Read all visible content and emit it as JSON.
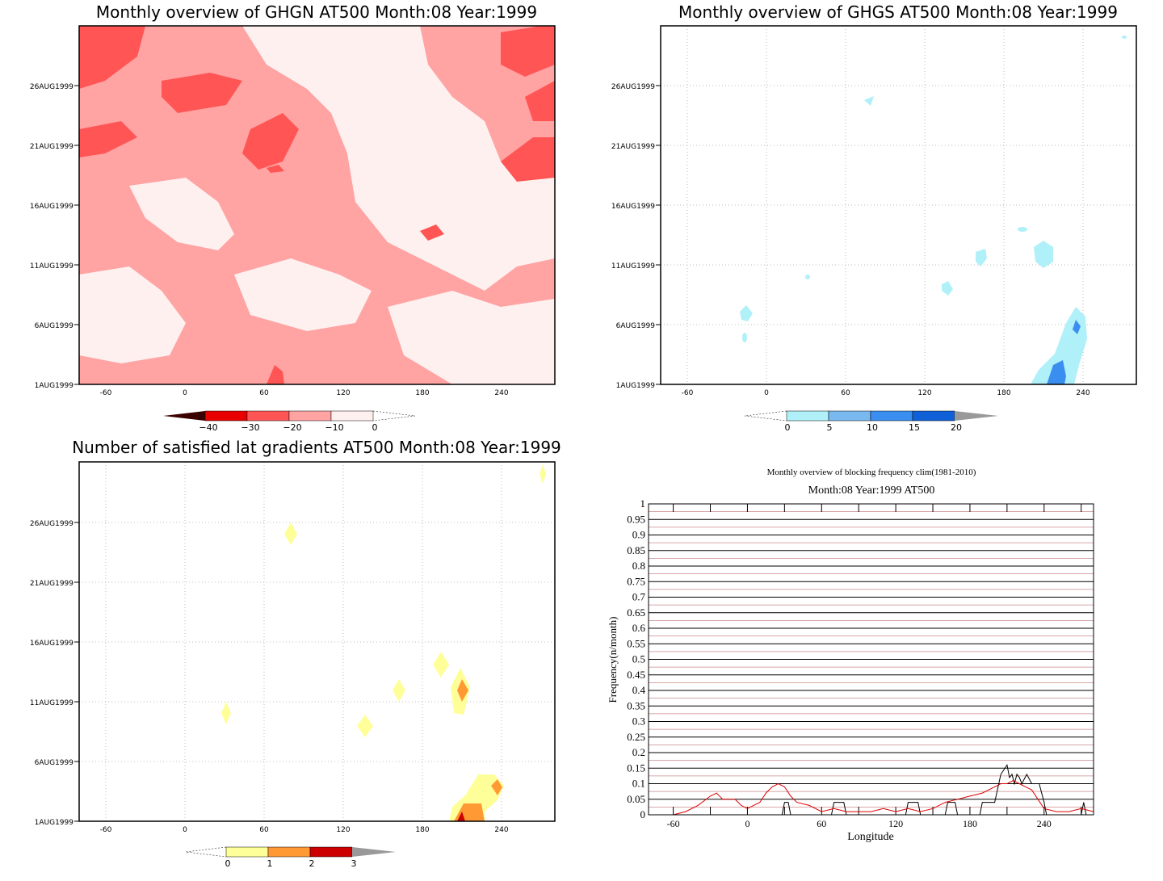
{
  "panels": {
    "ghgn": {
      "title": "Monthly overview of GHGN AT500 Month:08 Year:1999",
      "colorbar": {
        "ticks": [
          "−40",
          "−30",
          "−20",
          "−10",
          "0"
        ],
        "colors": [
          "#3a0000",
          "#e80000",
          "#ff5555",
          "#ffa3a3",
          "#fff0f0"
        ]
      }
    },
    "ghgs": {
      "title": "Monthly overview of GHGS AT500 Month:08 Year:1999",
      "colorbar": {
        "ticks": [
          "0",
          "5",
          "10",
          "15",
          "20"
        ],
        "colors": [
          "#b0f0f8",
          "#7ab8f0",
          "#3a8ef0",
          "#1060d8",
          "#999999"
        ]
      }
    },
    "gradients": {
      "title": "Number of satisfied lat gradients AT500 Month:08 Year:1999",
      "colorbar": {
        "ticks": [
          "0",
          "1",
          "2",
          "3"
        ],
        "colors": [
          "#ffff99",
          "#ff9933",
          "#cc0000",
          "#999999"
        ]
      }
    },
    "blocking": {
      "suptitle": "Monthly overview of blocking frequency clim(1981-2010)",
      "title": "Month:08 Year:1999  AT500",
      "ylabel": "Frequency(n/month)",
      "xlabel": "Longitude"
    }
  },
  "common_axes": {
    "x_ticks": [
      "-60",
      "0",
      "60",
      "120",
      "180",
      "240"
    ],
    "y_ticks": [
      "1AUG1999",
      "6AUG1999",
      "11AUG1999",
      "16AUG1999",
      "21AUG1999",
      "26AUG1999"
    ]
  },
  "chart_data": [
    {
      "type": "heatmap",
      "title": "Monthly overview of GHGN AT500 Month:08 Year:1999",
      "x_ticks": [
        -60,
        0,
        60,
        120,
        180,
        240
      ],
      "xlim": [
        -80,
        280
      ],
      "y_ticks": [
        "1AUG1999",
        "6AUG1999",
        "11AUG1999",
        "16AUG1999",
        "21AUG1999",
        "26AUG1999"
      ],
      "levels": [
        -40,
        -30,
        -20,
        -10,
        0
      ]
    },
    {
      "type": "heatmap",
      "title": "Monthly overview of GHGS AT500 Month:08 Year:1999",
      "x_ticks": [
        -60,
        0,
        60,
        120,
        180,
        240
      ],
      "xlim": [
        -80,
        280
      ],
      "levels": [
        0,
        5,
        10,
        15,
        20
      ]
    },
    {
      "type": "heatmap",
      "title": "Number of satisfied lat gradients AT500 Month:08 Year:1999",
      "x_ticks": [
        -60,
        0,
        60,
        120,
        180,
        240
      ],
      "xlim": [
        -80,
        280
      ],
      "levels": [
        0,
        1,
        2,
        3
      ]
    },
    {
      "type": "line",
      "title": "Month:08 Year:1999  AT500",
      "xlabel": "Longitude",
      "ylabel": "Frequency(n/month)",
      "xlim": [
        -80,
        280
      ],
      "ylim": [
        0,
        1
      ],
      "x_ticks": [
        -60,
        0,
        60,
        120,
        180,
        240
      ],
      "y_ticks": [
        "0",
        "0.05",
        "0.1",
        "0.15",
        "0.2",
        "0.25",
        "0.3",
        "0.35",
        "0.4",
        "0.45",
        "0.5",
        "0.55",
        "0.6",
        "0.65",
        "0.7",
        "0.75",
        "0.8",
        "0.85",
        "0.9",
        "0.95",
        "1"
      ],
      "series": [
        {
          "color": "#000000",
          "x": [
            -70,
            28,
            30,
            33,
            35,
            68,
            70,
            78,
            80,
            128,
            130,
            138,
            140,
            160,
            162,
            168,
            170,
            188,
            190,
            200,
            205,
            210,
            212,
            214,
            216,
            218,
            220,
            222,
            226,
            230,
            236,
            240,
            242,
            260,
            270,
            272,
            274,
            280
          ],
          "y": [
            0,
            0,
            0.04,
            0.04,
            0,
            0,
            0.04,
            0.04,
            0,
            0,
            0.04,
            0.04,
            0,
            0,
            0.04,
            0.04,
            0,
            0,
            0.04,
            0.04,
            0.13,
            0.16,
            0.12,
            0.13,
            0.1,
            0.13,
            0.12,
            0.1,
            0.13,
            0.1,
            0.1,
            0.04,
            0,
            0,
            0,
            0.04,
            0,
            0
          ]
        },
        {
          "color": "#dd0000",
          "x": [
            -70,
            -60,
            -50,
            -40,
            -30,
            -25,
            -20,
            -15,
            -10,
            -5,
            0,
            5,
            10,
            15,
            20,
            25,
            30,
            35,
            40,
            50,
            60,
            70,
            80,
            90,
            100,
            110,
            120,
            130,
            140,
            150,
            160,
            170,
            180,
            190,
            200,
            205,
            210,
            215,
            220,
            225,
            230,
            235,
            240,
            250,
            260,
            270,
            280
          ],
          "y": [
            0,
            0,
            0.01,
            0.03,
            0.06,
            0.07,
            0.05,
            0.05,
            0.05,
            0.03,
            0.02,
            0.03,
            0.04,
            0.07,
            0.09,
            0.1,
            0.09,
            0.06,
            0.04,
            0.03,
            0.01,
            0.02,
            0.01,
            0.01,
            0.01,
            0.02,
            0.01,
            0.02,
            0.01,
            0.02,
            0.04,
            0.05,
            0.06,
            0.07,
            0.09,
            0.1,
            0.1,
            0.11,
            0.1,
            0.09,
            0.08,
            0.05,
            0.02,
            0.01,
            0.01,
            0.02,
            0.01
          ]
        }
      ]
    }
  ]
}
